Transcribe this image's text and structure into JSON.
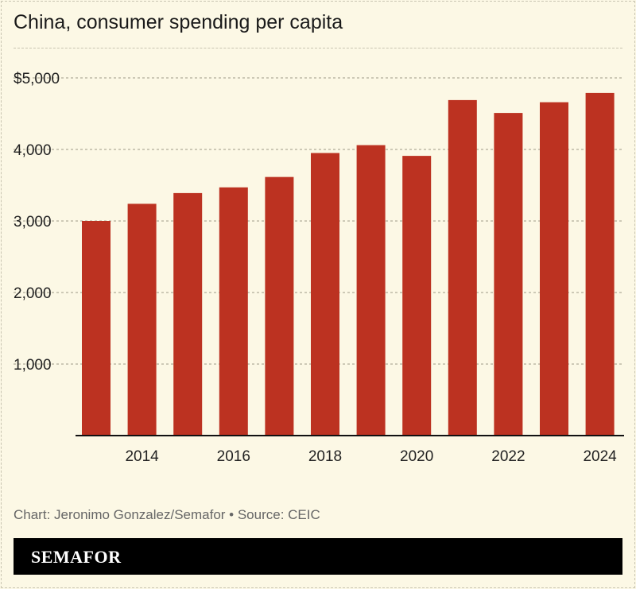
{
  "chart_data": {
    "type": "bar",
    "title": "China, consumer spending per capita",
    "categories": [
      "2013",
      "2014",
      "2015",
      "2016",
      "2017",
      "2018",
      "2019",
      "2020",
      "2021",
      "2022",
      "2023",
      "2024"
    ],
    "values": [
      3000,
      3240,
      3390,
      3470,
      3615,
      3950,
      4060,
      3910,
      4690,
      4510,
      4660,
      4790
    ],
    "x_tick_labels": [
      "2014",
      "2016",
      "2018",
      "2020",
      "2022",
      "2024"
    ],
    "y_tick_labels": [
      "$5,000",
      "4,000",
      "3,000",
      "2,000",
      "1,000"
    ],
    "y_ticks": [
      5000,
      4000,
      3000,
      2000,
      1000
    ],
    "ylim": [
      0,
      5000
    ],
    "grid": true,
    "bar_color": "#bc3221"
  },
  "credit": "Chart: Jeronimo Gonzalez/Semafor • Source: CEIC",
  "brand": "SEMAFOR"
}
